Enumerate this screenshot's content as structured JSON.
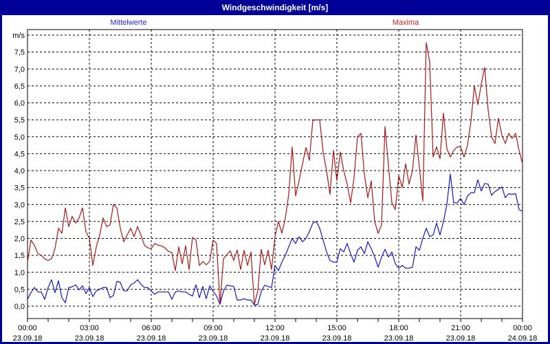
{
  "window": {
    "title": "Windgeschwindigkeit [m/s]"
  },
  "legend": {
    "mean": "Mittelwerte",
    "max": "Maxima"
  },
  "colors": {
    "frame": "#000099",
    "title_bg": "#000099",
    "title_text": "#ffffff",
    "mean_line": "#1414cc",
    "max_line": "#b01414",
    "mean_label": "#2222dd",
    "max_label": "#cc2222",
    "grid": "#000000",
    "plot_bg": "#ffffff"
  },
  "y_axis": {
    "unit": "m/s",
    "min": 0,
    "max": 8,
    "step": 0.5,
    "tick_labels": [
      "0,0",
      "0,5",
      "1,0",
      "1,5",
      "2,0",
      "2,5",
      "3,0",
      "3,5",
      "4,0",
      "4,5",
      "5,0",
      "5,5",
      "6,0",
      "6,5",
      "7,0",
      "7,5"
    ]
  },
  "x_axis": {
    "tick_times": [
      "00:00",
      "03:00",
      "06:00",
      "09:00",
      "12:00",
      "15:00",
      "18:00",
      "21:00",
      "00:00"
    ],
    "tick_dates": [
      "23.09.18",
      "23.09.18",
      "23.09.18",
      "23.09.18",
      "23.09.18",
      "23.09.18",
      "23.09.18",
      "23.09.18",
      "24.09.18"
    ]
  },
  "chart_data": {
    "type": "line",
    "title": "Windgeschwindigkeit [m/s]",
    "ylabel": "m/s",
    "ylim": [
      0,
      8
    ],
    "grid": true,
    "legend_position": "top",
    "x_start_minutes": 0,
    "x_end_minutes": 1440,
    "x_step_minutes": 10,
    "x_tick_hours": [
      0,
      3,
      6,
      9,
      12,
      15,
      18,
      21,
      24
    ],
    "series": [
      {
        "name": "Mittelwerte",
        "color": "#1414cc",
        "values": [
          0.2,
          0.4,
          0.55,
          0.42,
          0.42,
          0.2,
          0.55,
          0.78,
          0.4,
          0.75,
          0.25,
          0.1,
          0.55,
          0.57,
          0.63,
          0.48,
          0.6,
          0.37,
          0.55,
          0.28,
          0.45,
          0.5,
          0.55,
          0.55,
          0.25,
          0.32,
          0.73,
          0.7,
          0.45,
          0.45,
          0.63,
          0.68,
          0.78,
          0.65,
          0.55,
          0.55,
          0.45,
          0.35,
          0.42,
          0.42,
          0.42,
          0.42,
          0.2,
          0.42,
          0.45,
          0.42,
          0.42,
          0.35,
          0.3,
          0.63,
          0.25,
          0.58,
          0.22,
          0.6,
          0.44,
          0.3,
          0.05,
          0.44,
          0.62,
          0.6,
          0.58,
          0.18,
          0.18,
          0.22,
          0.18,
          0.18,
          0.03,
          0.05,
          0.44,
          0.62,
          0.58,
          0.55,
          1.2,
          1.05,
          1.3,
          1.5,
          1.75,
          2.0,
          1.85,
          2.05,
          1.9,
          2.0,
          2.2,
          2.45,
          2.5,
          2.3,
          1.95,
          1.6,
          1.35,
          1.3,
          1.3,
          1.7,
          1.6,
          1.85,
          1.55,
          1.3,
          1.65,
          1.75,
          1.55,
          1.9,
          1.7,
          1.45,
          1.15,
          1.45,
          1.68,
          1.45,
          1.6,
          1.25,
          1.12,
          1.2,
          1.12,
          1.12,
          1.15,
          1.75,
          1.65,
          2.0,
          2.3,
          2.05,
          2.1,
          2.45,
          2.1,
          2.5,
          3.0,
          3.9,
          3.05,
          3.05,
          3.18,
          3.0,
          3.25,
          3.35,
          3.35,
          3.73,
          3.4,
          3.62,
          3.6,
          3.27,
          3.38,
          3.45,
          3.52,
          3.2,
          3.32,
          3.3,
          3.32,
          2.85,
          2.8
        ]
      },
      {
        "name": "Maxima",
        "color": "#b01414",
        "values": [
          1.3,
          1.95,
          1.8,
          1.55,
          1.5,
          1.4,
          1.35,
          1.4,
          1.7,
          2.3,
          2.15,
          2.9,
          2.35,
          2.65,
          2.45,
          2.6,
          2.9,
          2.2,
          2.0,
          1.2,
          1.75,
          2.1,
          2.6,
          2.35,
          2.4,
          3.0,
          2.9,
          2.3,
          1.9,
          2.1,
          2.3,
          2.05,
          2.35,
          2.1,
          1.8,
          1.72,
          1.7,
          1.85,
          1.8,
          1.78,
          1.72,
          1.62,
          1.58,
          1.05,
          1.75,
          1.25,
          1.78,
          1.08,
          2.03,
          1.95,
          1.2,
          1.32,
          1.22,
          1.32,
          1.95,
          1.85,
          0.07,
          1.4,
          1.52,
          1.63,
          1.35,
          1.66,
          1.08,
          1.65,
          1.2,
          1.6,
          0.05,
          0.45,
          1.68,
          1.22,
          1.65,
          1.08,
          2.05,
          2.5,
          2.15,
          2.6,
          3.3,
          4.7,
          3.25,
          3.7,
          4.2,
          4.68,
          4.3,
          5.48,
          5.5,
          5.5,
          4.55,
          4.0,
          3.3,
          4.6,
          3.7,
          4.55,
          4.0,
          3.6,
          3.05,
          3.8,
          5.0,
          5.1,
          3.9,
          3.2,
          3.7,
          2.5,
          2.15,
          2.4,
          5.3,
          4.15,
          3.05,
          2.85,
          3.85,
          3.5,
          4.2,
          3.6,
          4.0,
          5.05,
          4.1,
          3.1,
          7.78,
          7.2,
          4.4,
          4.7,
          4.35,
          5.7,
          4.65,
          4.4,
          4.6,
          4.7,
          4.7,
          4.4,
          4.75,
          5.45,
          6.5,
          5.95,
          6.55,
          7.05,
          5.8,
          5.0,
          4.8,
          5.55,
          5.05,
          4.8,
          5.1,
          4.95,
          5.1,
          4.6,
          4.2
        ]
      }
    ]
  }
}
